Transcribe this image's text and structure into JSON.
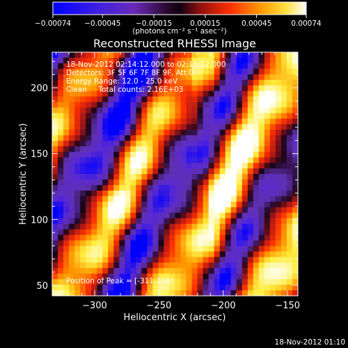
{
  "chart_data": {
    "type": "heatmap",
    "title": "Reconstructed RHESSI Image",
    "xlabel": "Heliocentric X (arcsec)",
    "ylabel": "Heliocentric Y (arcsec)",
    "xlim": [
      -333,
      -142
    ],
    "ylim": [
      42,
      227
    ],
    "xticks": [
      -300,
      -250,
      -200,
      -150
    ],
    "xtick_labels": [
      "−300",
      "−250",
      "−200",
      "−150"
    ],
    "yticks": [
      50,
      100,
      150,
      200
    ],
    "ytick_labels": [
      "50",
      "100",
      "150",
      "200"
    ],
    "colorbar": {
      "range": [
        -0.00074,
        0.00074
      ],
      "ticks": [
        -0.00074,
        -0.00045,
        -0.00015,
        0.00015,
        0.00045,
        0.00074
      ],
      "tick_labels": [
        "−0.00074",
        "−0.00045",
        "−0.00015",
        "0.00015",
        "0.00045",
        "0.00074"
      ],
      "units_label": "(photons cm⁻² s⁻¹ asec⁻²)"
    },
    "colormap": [
      "#0000ff",
      "#5a2ad2",
      "#6030b0",
      "#1a0418",
      "#b01818",
      "#ff3000",
      "#ff9800",
      "#ffee40",
      "#ffffff"
    ],
    "annotations": [
      "18-Nov-2012 02:14:12.000 to 02:15:12.000",
      "Detectors: 3F 5F 6F 7F 8F 9F, Att 0",
      "Energy Range: 12.0 - 25.0 keV",
      "Clean     Total counts: 2.16E+03"
    ],
    "peak_label": "Position of Peak = [-311,224]",
    "peak": {
      "x": -311,
      "y": 224
    }
  },
  "footer": {
    "timestamp": "18-Nov-2012 01:10"
  }
}
